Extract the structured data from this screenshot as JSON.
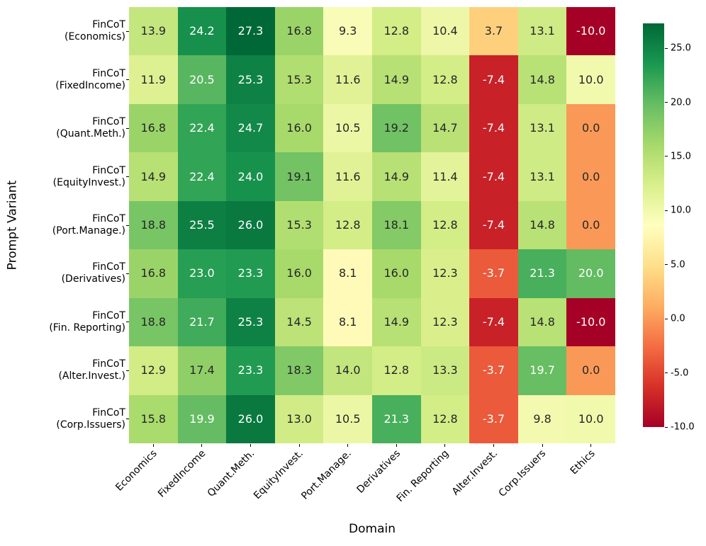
{
  "chart_data": {
    "type": "heatmap",
    "xlabel": "Domain",
    "ylabel": "Prompt Variant",
    "x_categories": [
      "Economics",
      "FixedIncome",
      "Quant.Meth.",
      "EquityInvest.",
      "Port.Manage.",
      "Derivatives",
      "Fin. Reporting",
      "Alter.Invest.",
      "Corp.Issuers",
      "Ethics"
    ],
    "y_categories": [
      [
        "FinCoT",
        "(Economics)"
      ],
      [
        "FinCoT",
        "(FixedIncome)"
      ],
      [
        "FinCoT",
        "(Quant.Meth.)"
      ],
      [
        "FinCoT",
        "(EquityInvest.)"
      ],
      [
        "FinCoT",
        "(Port.Manage.)"
      ],
      [
        "FinCoT",
        "(Derivatives)"
      ],
      [
        "FinCoT",
        "(Fin. Reporting)"
      ],
      [
        "FinCoT",
        "(Alter.Invest.)"
      ],
      [
        "FinCoT",
        "(Corp.Issuers)"
      ]
    ],
    "values": [
      [
        13.9,
        24.2,
        27.3,
        16.8,
        9.3,
        12.8,
        10.4,
        3.7,
        13.1,
        -10.0
      ],
      [
        11.9,
        20.5,
        25.3,
        15.3,
        11.6,
        14.9,
        12.8,
        -7.4,
        14.8,
        10.0
      ],
      [
        16.8,
        22.4,
        24.7,
        16.0,
        10.5,
        19.2,
        14.7,
        -7.4,
        13.1,
        0.0
      ],
      [
        14.9,
        22.4,
        24.0,
        19.1,
        11.6,
        14.9,
        11.4,
        -7.4,
        13.1,
        0.0
      ],
      [
        18.8,
        25.5,
        26.0,
        15.3,
        12.8,
        18.1,
        12.8,
        -7.4,
        14.8,
        0.0
      ],
      [
        16.8,
        23.0,
        23.3,
        16.0,
        8.1,
        16.0,
        12.3,
        -3.7,
        21.3,
        20.0
      ],
      [
        18.8,
        21.7,
        25.3,
        14.5,
        8.1,
        14.9,
        12.3,
        -7.4,
        14.8,
        -10.0
      ],
      [
        12.9,
        17.4,
        23.3,
        18.3,
        14.0,
        12.8,
        13.3,
        -3.7,
        19.7,
        0.0
      ],
      [
        15.8,
        19.9,
        26.0,
        13.0,
        10.5,
        21.3,
        12.8,
        -3.7,
        9.8,
        10.0
      ]
    ],
    "value_decimals": 1,
    "vmin": -10.0,
    "vmax": 27.3,
    "colormap": "RdYlGn",
    "colormap_stops": [
      "#a50026",
      "#d73027",
      "#f46d43",
      "#fdae61",
      "#fee08b",
      "#ffffbf",
      "#d9ef8b",
      "#a6d96a",
      "#66bd63",
      "#1a9850",
      "#006837"
    ],
    "colorbar_ticks": [
      25.0,
      20.0,
      15.0,
      10.0,
      5.0,
      0.0,
      -5.0,
      -10.0
    ],
    "colorbar_position": "right",
    "grid": false
  },
  "colors": {
    "background": "#ffffff",
    "annotation_dark": "#262626",
    "annotation_light": "#ffffff",
    "axis_text": "#000000"
  }
}
